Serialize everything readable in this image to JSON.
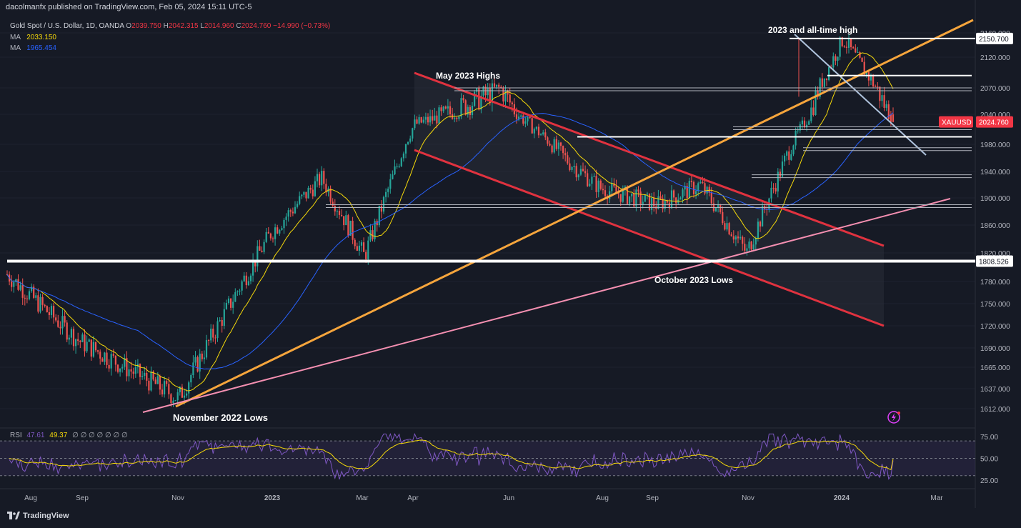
{
  "header": {
    "published_by": "dacolmanfx published on TradingView.com, Feb 05, 2024 15:11 UTC-5"
  },
  "symbol_legend": {
    "name": "Gold Spot / U.S. Dollar, 1D, OANDA",
    "o_label": "O",
    "o": "2039.750",
    "h_label": "H",
    "h": "2042.315",
    "l_label": "L",
    "l": "2014.960",
    "c_label": "C",
    "c": "2024.760",
    "change": "−14.990 (−0.73%)"
  },
  "indicators": [
    {
      "label": "MA",
      "value": "2033.150",
      "color": "#f5d90a"
    },
    {
      "label": "MA",
      "value": "1965.454",
      "color": "#2962ff"
    }
  ],
  "rsi_legend": {
    "label": "RSI",
    "value1": "47.61",
    "value2": "49.37",
    "zeros": "∅ ∅ ∅ ∅ ∅ ∅ ∅"
  },
  "price_axis": {
    "ticks": [
      "2160.000",
      "2120.000",
      "2070.000",
      "2040.000",
      "1980.000",
      "1940.000",
      "1900.000",
      "1860.000",
      "1820.000",
      "1780.000",
      "1750.000",
      "1720.000",
      "1690.000",
      "1665.000",
      "1637.000",
      "1612.000"
    ],
    "marker_last": {
      "symbol": "XAUUSD",
      "value": "2024.760",
      "color": "#f23645"
    },
    "marker_high": {
      "value": "2150.700"
    },
    "marker_low": {
      "value": "1808.526"
    }
  },
  "rsi_axis": {
    "ticks": [
      "75.00",
      "50.00",
      "25.00"
    ]
  },
  "time_axis": {
    "labels": [
      "Aug",
      "Sep",
      "Nov",
      "2023",
      "Mar",
      "Apr",
      "Jun",
      "Aug",
      "Sep",
      "Nov",
      "2024",
      "Mar"
    ]
  },
  "annotations": {
    "may_highs": "May 2023 Highs",
    "ath": "2023 and all-time high",
    "oct_lows": "October 2023 Lows",
    "nov_lows": "November 2022 Lows"
  },
  "branding": {
    "logo_text": "TradingView"
  },
  "chart_data": {
    "type": "candlestick",
    "instrument": "Gold Spot / U.S. Dollar",
    "timeframe": "1D",
    "source": "OANDA",
    "ohlc_last": {
      "open": 2039.75,
      "high": 2042.315,
      "low": 2014.96,
      "close": 2024.76,
      "change": -14.99,
      "change_pct": -0.73
    },
    "moving_averages": [
      {
        "name": "MA",
        "last": 2033.15,
        "color": "#f5d90a"
      },
      {
        "name": "MA",
        "last": 1965.454,
        "color": "#2962ff"
      }
    ],
    "anchor_prices": [
      {
        "label": "Aug 2022",
        "price": 1790
      },
      {
        "label": "Sep 2022",
        "price": 1700
      },
      {
        "label": "Nov 2022",
        "price": 1625
      },
      {
        "label": "Jan 2023",
        "price": 1850
      },
      {
        "label": "Feb 2023",
        "price": 1930
      },
      {
        "label": "Mar 2023",
        "price": 1815
      },
      {
        "label": "Apr 2023",
        "price": 2020
      },
      {
        "label": "May 2023",
        "price": 2070
      },
      {
        "label": "Jun 2023",
        "price": 1960
      },
      {
        "label": "Jul 2023",
        "price": 1915
      },
      {
        "label": "Aug 2023",
        "price": 1890
      },
      {
        "label": "Sep 2023",
        "price": 1920
      },
      {
        "label": "Oct 2023",
        "price": 1820
      },
      {
        "label": "Nov 2023",
        "price": 1985
      },
      {
        "label": "Dec 2023",
        "price": 2150
      },
      {
        "label": "Jan 2024",
        "price": 2030
      },
      {
        "label": "Feb 2024",
        "price": 2025
      }
    ],
    "horizontal_levels": [
      2150.7,
      2090,
      2070,
      2015,
      1995,
      1975,
      1935,
      1890,
      1808.526
    ],
    "rsi": {
      "last": 47.61,
      "signal": 49.37,
      "bands": [
        30,
        50,
        70
      ]
    },
    "ylim": [
      1600,
      2170
    ],
    "rsi_ylim": [
      15,
      80
    ]
  }
}
